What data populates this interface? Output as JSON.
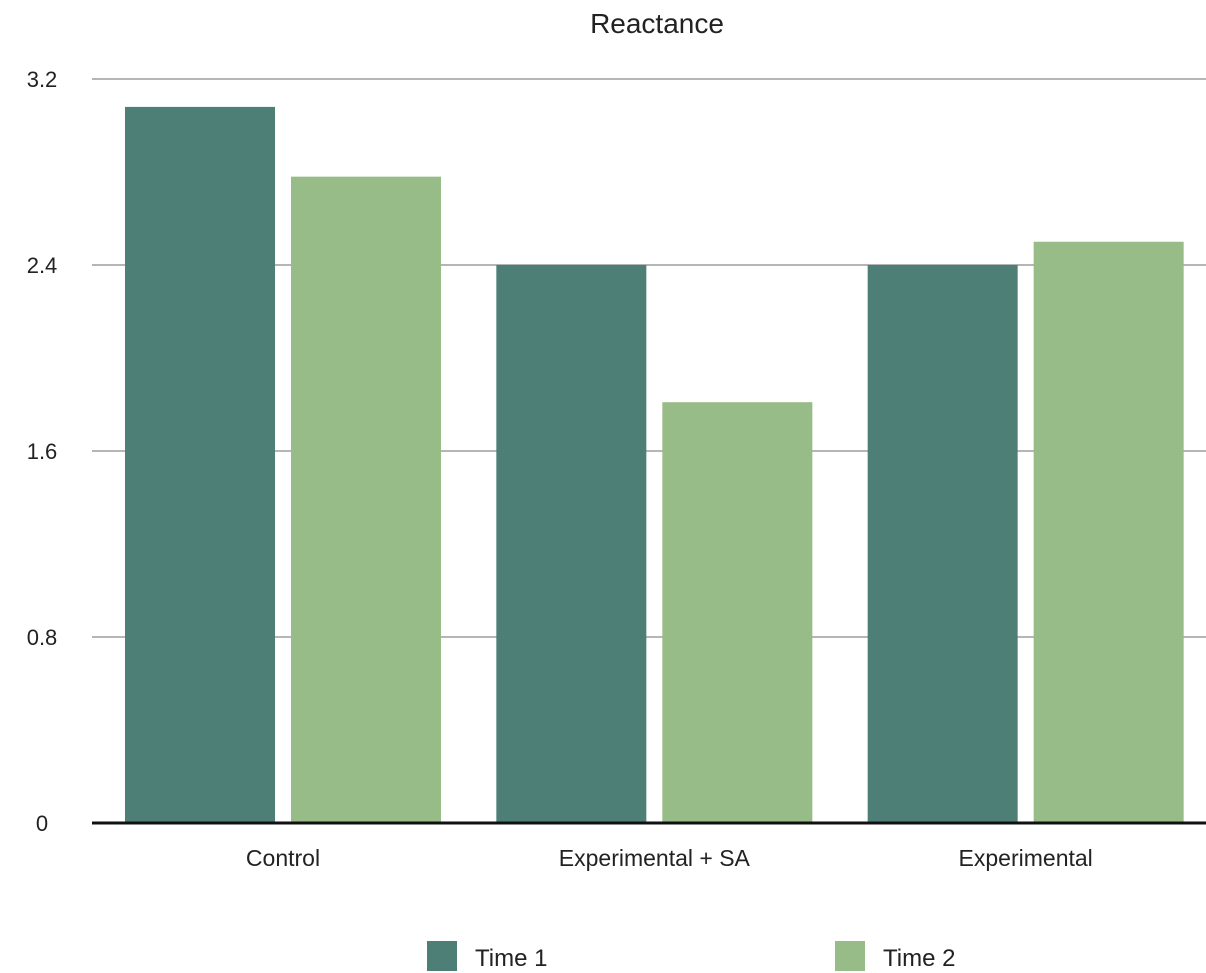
{
  "chart_data": {
    "type": "bar",
    "title": "Reactance",
    "categories": [
      "Control",
      "Experimental + SA",
      "Experimental"
    ],
    "series": [
      {
        "name": "Time 1",
        "color": "#4d7f77",
        "values": [
          3.08,
          2.4,
          2.4
        ]
      },
      {
        "name": "Time 2",
        "color": "#97bc88",
        "values": [
          2.78,
          1.81,
          2.5
        ]
      }
    ],
    "yticks": [
      "0",
      "0.8",
      "1.6",
      "2.4",
      "3.2"
    ],
    "ylim": [
      0,
      3.2
    ],
    "grid": true,
    "legend_position": "bottom",
    "xlabel": "",
    "ylabel": ""
  }
}
